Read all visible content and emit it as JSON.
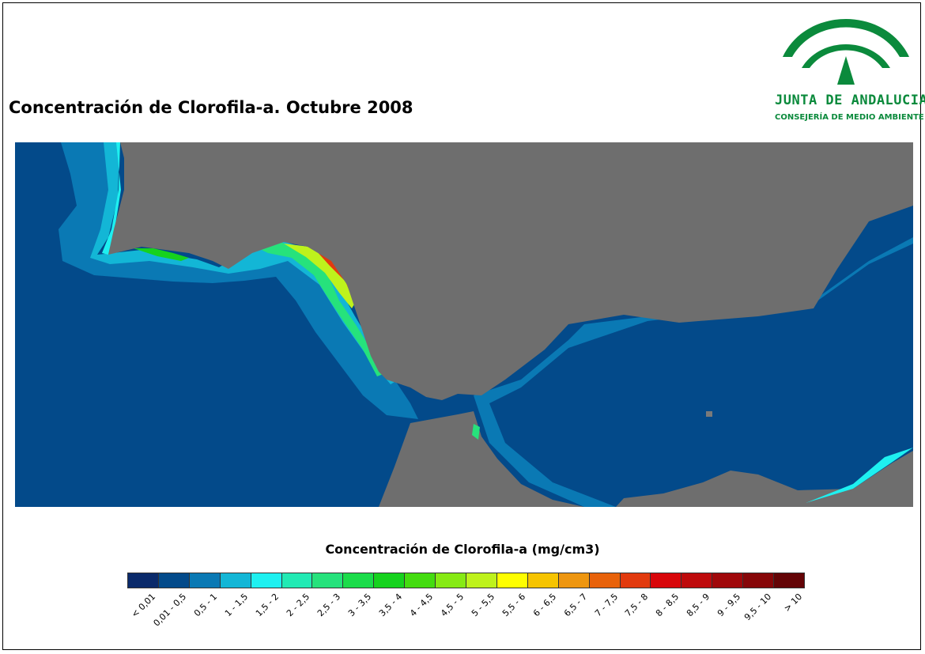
{
  "title": "Concentración de Clorofila-a. Octubre 2008",
  "logo": {
    "name": "JUNTA DE ANDALUCIA",
    "department": "CONSEJERÍA DE MEDIO AMBIENTE",
    "colors": {
      "primary": "#0b8a3c"
    }
  },
  "map": {
    "colors": {
      "land": "#6e6e6e",
      "sea": "#034a8a",
      "no_data": "#7a7a7a"
    }
  },
  "legend": {
    "title": "Concentración de Clorofila-a (mg/cm3)",
    "classes": [
      {
        "label": "< 0,01",
        "color": "#0a2a6b"
      },
      {
        "label": "0,01 - 0,5",
        "color": "#034a8a"
      },
      {
        "label": "0,5 - 1",
        "color": "#0a79b4"
      },
      {
        "label": "1 - 1,5",
        "color": "#13b6d6"
      },
      {
        "label": "1,5 - 2",
        "color": "#1ef0f0"
      },
      {
        "label": "2 - 2,5",
        "color": "#22eab4"
      },
      {
        "label": "2,5 - 3",
        "color": "#26e27c"
      },
      {
        "label": "3 - 3,5",
        "color": "#1bdc4a"
      },
      {
        "label": "3,5 - 4",
        "color": "#16d21e"
      },
      {
        "label": "4 - 4,5",
        "color": "#44dc10"
      },
      {
        "label": "4,5 - 5",
        "color": "#86ea14"
      },
      {
        "label": "5 - 5,5",
        "color": "#bef21c"
      },
      {
        "label": "5,5 - 6",
        "color": "#fefe00"
      },
      {
        "label": "6 - 6,5",
        "color": "#f6c400"
      },
      {
        "label": "6,5 - 7",
        "color": "#ee9610"
      },
      {
        "label": "7 - 7,5",
        "color": "#e8620a"
      },
      {
        "label": "7,5 - 8",
        "color": "#e23a0e"
      },
      {
        "label": "8 - 8,5",
        "color": "#d8060a"
      },
      {
        "label": "8,5 - 9",
        "color": "#be0a0c"
      },
      {
        "label": "9 - 9,5",
        "color": "#a0080a"
      },
      {
        "label": "9,5 - 10",
        "color": "#860608"
      },
      {
        "label": "> 10",
        "color": "#640406"
      }
    ]
  }
}
